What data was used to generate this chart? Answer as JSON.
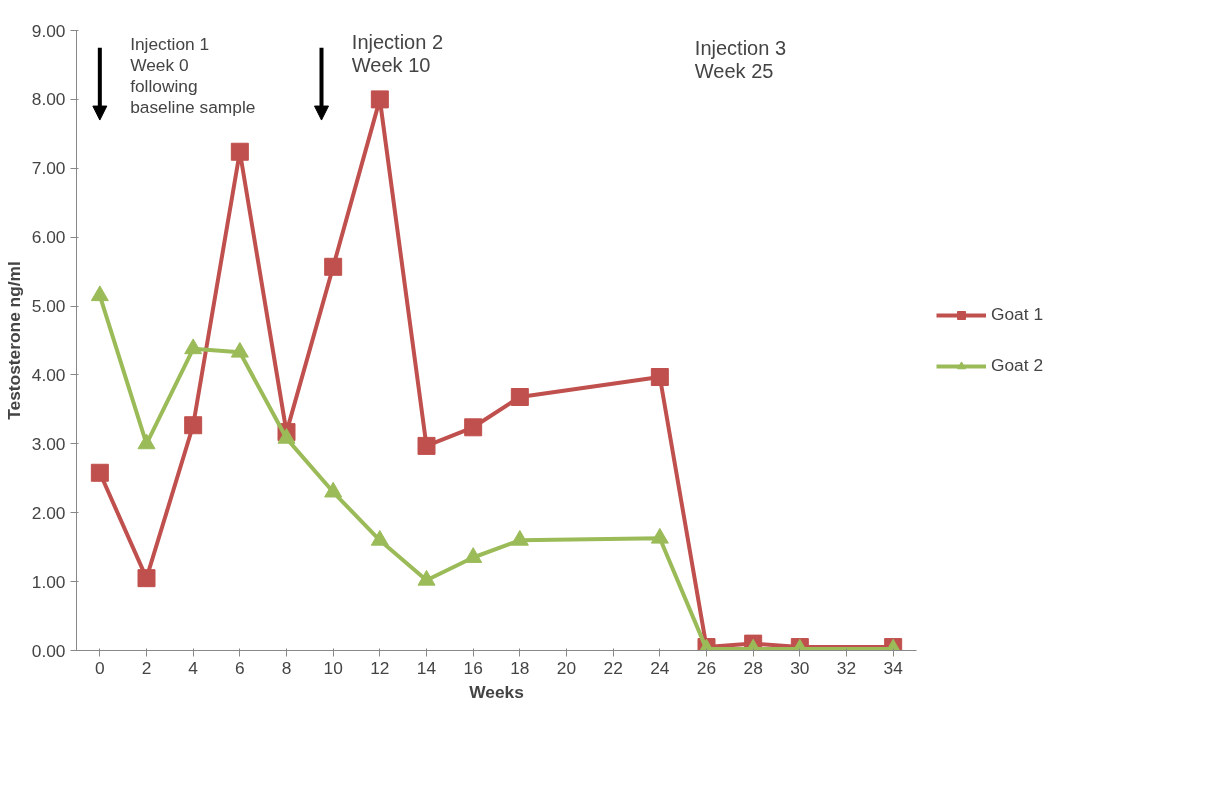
{
  "chart_data": {
    "type": "line",
    "xlabel": "Weeks",
    "ylabel": "Testosterone ng/ml",
    "x": [
      0,
      2,
      4,
      6,
      8,
      10,
      12,
      14,
      16,
      18,
      24,
      26,
      28,
      30,
      34
    ],
    "series": [
      {
        "name": "Goat 1",
        "color": "#c0504d",
        "marker": "square",
        "values": [
          2.58,
          1.05,
          3.27,
          7.24,
          3.17,
          5.57,
          8.0,
          2.97,
          3.24,
          3.68,
          3.97,
          0.05,
          0.1,
          0.05,
          0.05
        ]
      },
      {
        "name": "Goat 2",
        "color": "#9bbb59",
        "marker": "triangle",
        "values": [
          5.15,
          3.0,
          4.38,
          4.33,
          3.08,
          2.3,
          1.6,
          1.02,
          1.35,
          1.6,
          1.63,
          0.02,
          0.02,
          0.02,
          0.02
        ]
      }
    ],
    "xlim": [
      -1,
      35
    ],
    "xticks": [
      0,
      2,
      4,
      6,
      8,
      10,
      12,
      14,
      16,
      18,
      20,
      22,
      24,
      26,
      28,
      30,
      32,
      34
    ],
    "ylim": [
      0,
      9
    ],
    "yticks": [
      {
        "value": 0,
        "label": "0.00"
      },
      {
        "value": 1,
        "label": "1.00"
      },
      {
        "value": 2,
        "label": "2.00"
      },
      {
        "value": 3,
        "label": "3.00"
      },
      {
        "value": 4,
        "label": "4.00"
      },
      {
        "value": 5,
        "label": "5.00"
      },
      {
        "value": 6,
        "label": "6.00"
      },
      {
        "value": 7,
        "label": "7.00"
      },
      {
        "value": 8,
        "label": "8.00"
      },
      {
        "value": 9,
        "label": "9.00"
      }
    ],
    "annotations": [
      "Injection 1\nWeek 0\nfollowing\nbaseline sample",
      "Injection 2\nWeek 10",
      "Injection 3\nWeek 25"
    ],
    "grid": false,
    "legend": "right",
    "line_style": "solid"
  }
}
